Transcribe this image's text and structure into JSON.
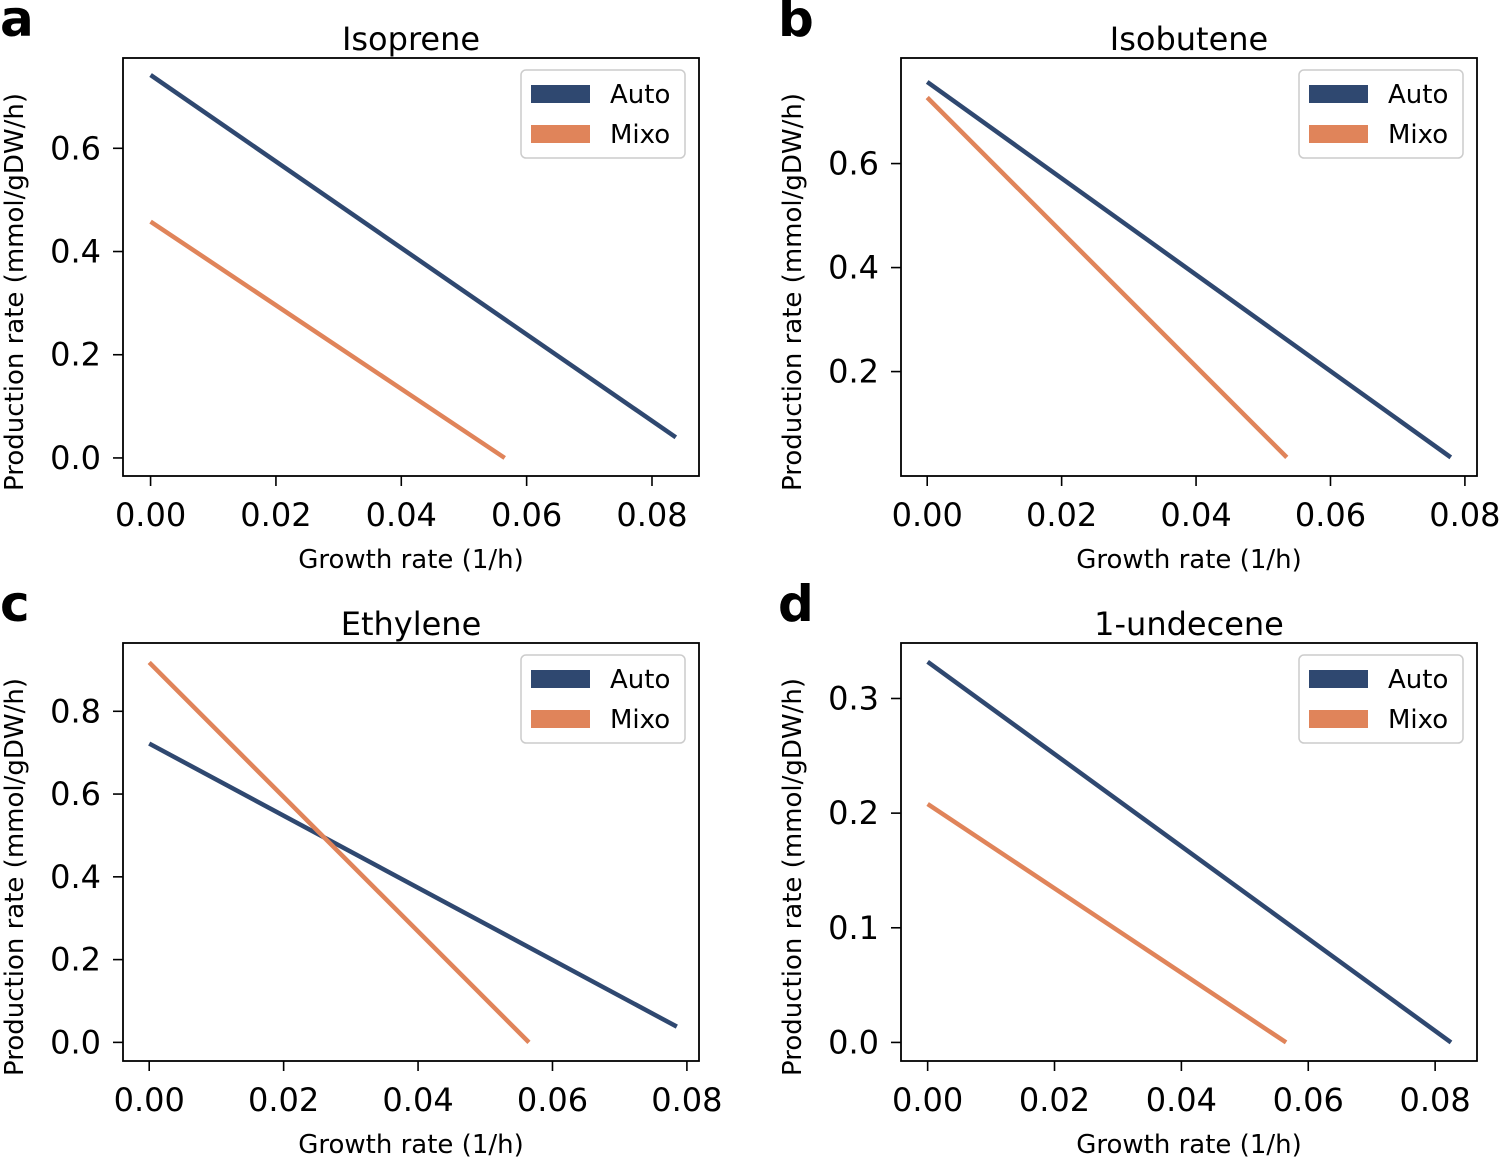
{
  "colors": {
    "auto": "#2f4870",
    "mixo": "#e0845a"
  },
  "chart_data": [
    {
      "panel": "a",
      "type": "line",
      "title": "Isoprene",
      "xlabel": "Growth rate (1/h)",
      "ylabel": "Production rate (mmol/gDW/h)",
      "xlim": [
        -0.0044,
        0.0875
      ],
      "ylim": [
        -0.035,
        0.775
      ],
      "xticks": [
        0.0,
        0.02,
        0.04,
        0.06,
        0.08
      ],
      "xtick_labels": [
        "0.00",
        "0.02",
        "0.04",
        "0.06",
        "0.08"
      ],
      "yticks": [
        0.0,
        0.2,
        0.4,
        0.6
      ],
      "ytick_labels": [
        "0.0",
        "0.2",
        "0.4",
        "0.6"
      ],
      "legend": [
        "Auto",
        "Mixo"
      ],
      "legend_position": "top-right",
      "series": [
        {
          "name": "Auto",
          "x": [
            0.0,
            0.0838
          ],
          "y": [
            0.742,
            0.04
          ]
        },
        {
          "name": "Mixo",
          "x": [
            0.0,
            0.0565
          ],
          "y": [
            0.458,
            0.0
          ]
        }
      ]
    },
    {
      "panel": "b",
      "type": "line",
      "title": "Isobutene",
      "xlabel": "Growth rate (1/h)",
      "ylabel": "Production rate (mmol/gDW/h)",
      "xlim": [
        -0.0039,
        0.0818
      ],
      "ylim": [
        -0.0008,
        0.803
      ],
      "xticks": [
        0.0,
        0.02,
        0.04,
        0.06,
        0.08
      ],
      "xtick_labels": [
        "0.00",
        "0.02",
        "0.04",
        "0.06",
        "0.08"
      ],
      "yticks": [
        0.2,
        0.4,
        0.6
      ],
      "ytick_labels": [
        "0.2",
        "0.4",
        "0.6"
      ],
      "legend": [
        "Auto",
        "Mixo"
      ],
      "legend_position": "top-right",
      "series": [
        {
          "name": "Auto",
          "x": [
            0.0,
            0.0779
          ],
          "y": [
            0.757,
            0.035
          ]
        },
        {
          "name": "Mixo",
          "x": [
            0.0,
            0.0535
          ],
          "y": [
            0.727,
            0.035
          ]
        }
      ]
    },
    {
      "panel": "c",
      "type": "line",
      "title": "Ethylene",
      "xlabel": "Growth rate (1/h)",
      "ylabel": "Production rate (mmol/gDW/h)",
      "xlim": [
        -0.0039,
        0.0818
      ],
      "ylim": [
        -0.045,
        0.965
      ],
      "xticks": [
        0.0,
        0.02,
        0.04,
        0.06,
        0.08
      ],
      "xtick_labels": [
        "0.00",
        "0.02",
        "0.04",
        "0.06",
        "0.08"
      ],
      "yticks": [
        0.0,
        0.2,
        0.4,
        0.6,
        0.8
      ],
      "ytick_labels": [
        "0.0",
        "0.2",
        "0.4",
        "0.6",
        "0.8"
      ],
      "legend": [
        "Auto",
        "Mixo"
      ],
      "legend_position": "top-right",
      "series": [
        {
          "name": "Auto",
          "x": [
            0.0,
            0.0785
          ],
          "y": [
            0.722,
            0.038
          ]
        },
        {
          "name": "Mixo",
          "x": [
            0.0,
            0.0565
          ],
          "y": [
            0.918,
            0.0
          ]
        }
      ]
    },
    {
      "panel": "d",
      "type": "line",
      "title": "1-undecene",
      "xlabel": "Growth rate (1/h)",
      "ylabel": "Production rate (mmol/gDW/h)",
      "xlim": [
        -0.0042,
        0.0866
      ],
      "ylim": [
        -0.0162,
        0.3484
      ],
      "xticks": [
        0.0,
        0.02,
        0.04,
        0.06,
        0.08
      ],
      "xtick_labels": [
        "0.00",
        "0.02",
        "0.04",
        "0.06",
        "0.08"
      ],
      "yticks": [
        0.0,
        0.1,
        0.2,
        0.3
      ],
      "ytick_labels": [
        "0.0",
        "0.1",
        "0.2",
        "0.3"
      ],
      "legend": [
        "Auto",
        "Mixo"
      ],
      "legend_position": "top-right",
      "series": [
        {
          "name": "Auto",
          "x": [
            0.0,
            0.0825
          ],
          "y": [
            0.332,
            0.0
          ]
        },
        {
          "name": "Mixo",
          "x": [
            0.0,
            0.0565
          ],
          "y": [
            0.208,
            0.0
          ]
        }
      ]
    }
  ]
}
